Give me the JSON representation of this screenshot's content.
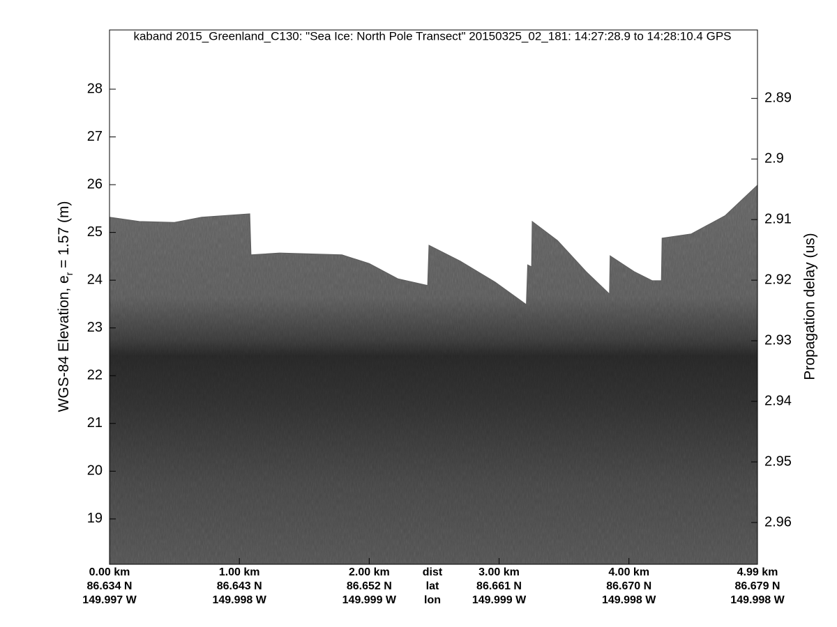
{
  "chart_data": {
    "type": "echogram",
    "title": "kaband 2015_Greenland_C130: \"Sea Ice: North Pole Transect\"  20150325_02_181: 14:27:28.9 to 14:28:10.4 GPS",
    "ylabel": [
      "WGS-84 Elevation, e",
      "r",
      " = 1.57 (m)"
    ],
    "y2label": "Propagation delay (us)",
    "xlim": [
      0,
      4.99
    ],
    "ylim": [
      18.05,
      29.24
    ],
    "y2lim": [
      2.9669,
      2.8787
    ],
    "yticks": [
      19,
      20,
      21,
      22,
      23,
      24,
      25,
      26,
      27,
      28
    ],
    "y2ticks": [
      2.89,
      2.9,
      2.91,
      2.92,
      2.93,
      2.94,
      2.95,
      2.96
    ],
    "xticks": [
      {
        "value": 0,
        "label": "0.00 km"
      },
      {
        "value": 1,
        "label": "1.00 km"
      },
      {
        "value": 2,
        "label": "2.00 km"
      },
      {
        "value": 3,
        "label": "3.00 km"
      },
      {
        "value": 4,
        "label": "4.00 km"
      },
      {
        "value": 4.99,
        "label": "4.99 km"
      }
    ],
    "xtick_lat": [
      "86.634 N",
      "86.643 N",
      "86.652 N",
      "86.661 N",
      "86.670 N",
      "86.679 N"
    ],
    "xtick_lon": [
      "149.997 W",
      "149.998 W",
      "149.999 W",
      "149.999 W",
      "149.998 W",
      "149.998 W"
    ],
    "xrow_labels": [
      "dist",
      "lat",
      "lon"
    ],
    "x": [
      0,
      0.23,
      0.5,
      0.71,
      1.08,
      1.09,
      1.31,
      1.79,
      2.0,
      2.22,
      2.45,
      2.46,
      2.7,
      2.97,
      3.21,
      3.22,
      3.25,
      3.255,
      3.45,
      3.67,
      3.85,
      3.855,
      4.04,
      4.18,
      4.25,
      4.255,
      4.48,
      4.74,
      4.99
    ],
    "values": [
      25.32,
      25.23,
      25.21,
      25.32,
      25.39,
      24.53,
      24.57,
      24.53,
      24.35,
      24.03,
      23.89,
      24.73,
      24.4,
      23.96,
      23.49,
      24.32,
      24.28,
      25.23,
      24.83,
      24.18,
      23.71,
      24.51,
      24.18,
      23.99,
      23.99,
      24.88,
      24.97,
      25.35,
      25.99
    ],
    "color": "#5e5e5e"
  }
}
